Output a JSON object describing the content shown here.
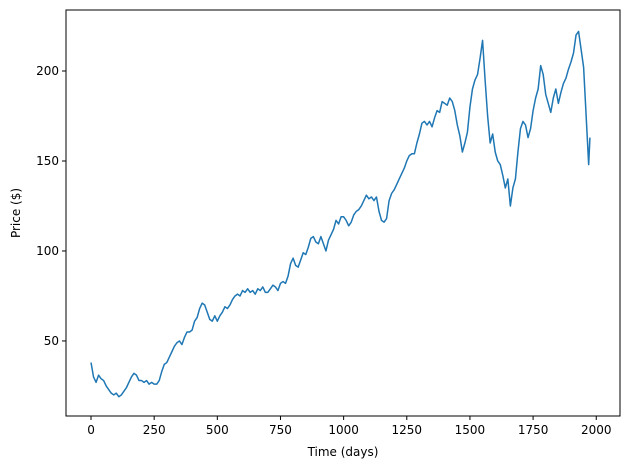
{
  "chart_data": {
    "type": "line",
    "x_label": "Time (days)",
    "y_label": "Price ($)",
    "x": [
      0,
      10,
      20,
      30,
      40,
      50,
      60,
      70,
      80,
      90,
      100,
      110,
      120,
      130,
      140,
      150,
      160,
      170,
      180,
      190,
      200,
      210,
      220,
      230,
      240,
      250,
      260,
      270,
      280,
      290,
      300,
      310,
      320,
      330,
      340,
      350,
      360,
      370,
      380,
      390,
      400,
      410,
      420,
      430,
      440,
      450,
      460,
      470,
      480,
      490,
      500,
      510,
      520,
      530,
      540,
      550,
      560,
      570,
      580,
      590,
      600,
      610,
      620,
      630,
      640,
      650,
      660,
      670,
      680,
      690,
      700,
      710,
      720,
      730,
      740,
      750,
      760,
      770,
      780,
      790,
      800,
      810,
      820,
      830,
      840,
      850,
      860,
      870,
      880,
      890,
      900,
      910,
      920,
      930,
      940,
      950,
      960,
      970,
      980,
      990,
      1000,
      1010,
      1020,
      1030,
      1040,
      1050,
      1060,
      1070,
      1080,
      1090,
      1100,
      1110,
      1120,
      1130,
      1140,
      1150,
      1160,
      1170,
      1180,
      1190,
      1200,
      1210,
      1220,
      1230,
      1240,
      1250,
      1260,
      1270,
      1280,
      1290,
      1300,
      1310,
      1320,
      1330,
      1340,
      1350,
      1360,
      1370,
      1380,
      1390,
      1400,
      1410,
      1420,
      1430,
      1440,
      1450,
      1460,
      1470,
      1480,
      1490,
      1500,
      1510,
      1520,
      1530,
      1540,
      1550,
      1560,
      1570,
      1580,
      1590,
      1600,
      1610,
      1620,
      1630,
      1640,
      1650,
      1660,
      1670,
      1680,
      1690,
      1700,
      1710,
      1720,
      1730,
      1740,
      1750,
      1760,
      1770,
      1780,
      1790,
      1800,
      1810,
      1820,
      1830,
      1840,
      1850,
      1860,
      1870,
      1880,
      1890,
      1900,
      1910,
      1920,
      1930,
      1940,
      1950,
      1960,
      1970,
      1975
    ],
    "series": [
      {
        "color": "#1f77b4",
        "values": [
          38,
          30,
          27,
          31,
          29,
          28,
          25,
          23,
          21,
          20,
          21,
          19,
          20,
          22,
          24,
          27,
          30,
          32,
          31,
          28,
          28,
          27,
          28,
          26,
          27,
          26,
          26,
          28,
          33,
          37,
          38,
          41,
          44,
          47,
          49,
          50,
          48,
          52,
          55,
          55,
          56,
          61,
          63,
          68,
          71,
          70,
          66,
          62,
          61,
          64,
          61,
          64,
          66,
          69,
          68,
          70,
          73,
          75,
          76,
          75,
          78,
          77,
          79,
          77,
          78,
          76,
          79,
          78,
          80,
          77,
          77,
          79,
          81,
          80,
          78,
          82,
          83,
          82,
          86,
          93,
          96,
          92,
          91,
          95,
          99,
          98,
          102,
          107,
          108,
          105,
          104,
          108,
          104,
          100,
          106,
          109,
          112,
          117,
          115,
          119,
          119,
          117,
          114,
          116,
          120,
          122,
          123,
          125,
          128,
          131,
          129,
          130,
          128,
          130,
          122,
          117,
          116,
          118,
          128,
          132,
          134,
          137,
          140,
          143,
          146,
          150,
          153,
          154,
          154,
          160,
          165,
          171,
          172,
          170,
          172,
          169,
          174,
          178,
          177,
          183,
          182,
          181,
          185,
          183,
          178,
          170,
          164,
          155,
          160,
          166,
          180,
          190,
          195,
          198,
          207,
          217,
          195,
          175,
          160,
          165,
          155,
          150,
          148,
          142,
          135,
          140,
          125,
          135,
          140,
          155,
          168,
          172,
          170,
          163,
          168,
          178,
          185,
          190,
          203,
          198,
          187,
          182,
          177,
          185,
          190,
          182,
          188,
          193,
          196,
          201,
          205,
          210,
          220,
          222,
          212,
          202,
          175,
          148,
          163
        ]
      }
    ],
    "xlim": [
      -99,
      2094
    ],
    "ylim": [
      8.3,
      233.9
    ],
    "xticks": [
      0,
      250,
      500,
      750,
      1000,
      1250,
      1500,
      1750,
      2000
    ],
    "yticks": [
      50,
      100,
      150,
      200
    ],
    "grid": false
  }
}
